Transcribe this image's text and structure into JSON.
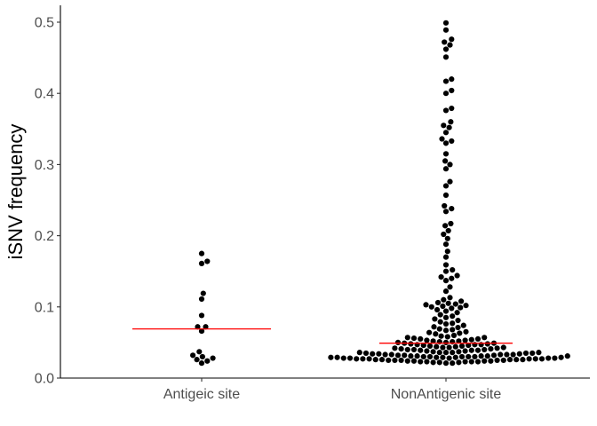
{
  "chart_data": {
    "type": "scatter",
    "ylabel": "iSNV frequency",
    "xlabel": "",
    "categories": [
      "Antigeic site",
      "NonAntigenic site"
    ],
    "ylim": [
      0,
      0.52
    ],
    "yticks": [
      0.0,
      0.1,
      0.2,
      0.3,
      0.4,
      0.5
    ],
    "ytick_labels": [
      "0.0",
      "0.1",
      "0.2",
      "0.3",
      "0.4",
      "0.5"
    ],
    "grid": false,
    "legend": "none",
    "colors": {
      "points": "#000000",
      "median": "#ff0000",
      "axis": "#000000",
      "tick_text": "#4d4d4d"
    },
    "medians": [
      0.069,
      0.049
    ],
    "series": [
      {
        "category": "Antigeic site",
        "values": [
          0.175,
          0.164,
          0.161,
          0.119,
          0.111,
          0.088,
          0.072,
          0.072,
          0.066,
          0.037,
          0.032,
          0.03,
          0.028,
          0.026,
          0.024,
          0.021
        ]
      },
      {
        "category": "NonAntigenic site",
        "values": [
          0.499,
          0.489,
          0.476,
          0.472,
          0.468,
          0.462,
          0.451,
          0.42,
          0.417,
          0.404,
          0.4,
          0.379,
          0.376,
          0.36,
          0.355,
          0.352,
          0.345,
          0.336,
          0.333,
          0.33,
          0.315,
          0.305,
          0.3,
          0.294,
          0.276,
          0.27,
          0.257,
          0.242,
          0.238,
          0.234,
          0.217,
          0.214,
          0.207,
          0.202,
          0.196,
          0.188,
          0.178,
          0.17,
          0.159,
          0.152,
          0.15,
          0.144,
          0.142,
          0.14,
          0.137,
          0.128,
          0.122,
          0.113,
          0.11,
          0.108,
          0.106,
          0.105,
          0.104,
          0.103,
          0.102,
          0.101,
          0.1,
          0.099,
          0.098,
          0.096,
          0.094,
          0.092,
          0.089,
          0.087,
          0.085,
          0.083,
          0.081,
          0.079,
          0.077,
          0.076,
          0.074,
          0.072,
          0.071,
          0.069,
          0.068,
          0.067,
          0.065,
          0.064,
          0.063,
          0.062,
          0.06,
          0.059,
          0.058,
          0.057,
          0.056,
          0.055,
          0.054,
          0.053,
          0.052,
          0.051,
          0.05,
          0.049,
          0.048,
          0.047,
          0.046,
          0.045,
          0.044,
          0.043,
          0.042,
          0.041,
          0.04,
          0.039,
          0.038,
          0.037,
          0.036,
          0.035,
          0.034,
          0.033,
          0.032,
          0.031,
          0.03,
          0.029,
          0.028,
          0.027,
          0.026,
          0.025,
          0.024,
          0.023,
          0.022,
          0.021,
          0.051,
          0.049,
          0.047,
          0.045,
          0.043,
          0.041,
          0.039,
          0.037,
          0.035,
          0.033,
          0.031,
          0.029,
          0.027,
          0.025,
          0.023,
          0.053,
          0.048,
          0.044,
          0.04,
          0.036,
          0.034,
          0.032,
          0.03,
          0.028,
          0.026,
          0.024,
          0.022,
          0.055,
          0.05,
          0.046,
          0.042,
          0.038,
          0.035,
          0.033,
          0.031,
          0.029,
          0.027,
          0.025,
          0.023,
          0.057,
          0.052,
          0.047,
          0.043,
          0.039,
          0.036,
          0.034,
          0.031,
          0.029,
          0.027,
          0.025,
          0.023,
          0.021,
          0.04,
          0.036,
          0.033,
          0.03,
          0.028,
          0.026,
          0.024,
          0.022,
          0.036,
          0.032,
          0.029,
          0.027,
          0.025,
          0.023,
          0.033,
          0.03,
          0.028,
          0.026,
          0.024,
          0.031,
          0.028,
          0.026,
          0.03,
          0.027,
          0.029
        ]
      }
    ]
  }
}
